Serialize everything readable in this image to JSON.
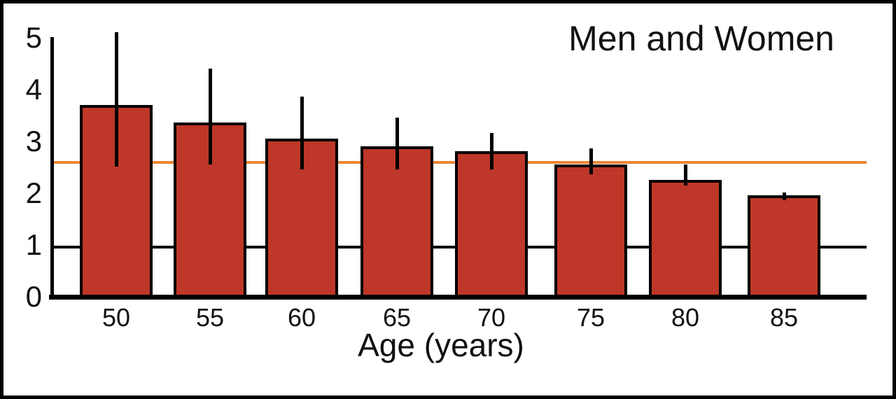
{
  "chart_data": {
    "type": "bar",
    "title": "Men and Women",
    "xlabel": "Age (years)",
    "ylabel": "",
    "categories": [
      "50",
      "55",
      "60",
      "65",
      "70",
      "75",
      "80",
      "85"
    ],
    "values": [
      3.75,
      3.4,
      3.1,
      2.95,
      2.85,
      2.6,
      2.3,
      2.0
    ],
    "error_low": [
      2.55,
      2.6,
      2.5,
      2.5,
      2.5,
      2.4,
      2.2,
      1.9
    ],
    "error_high": [
      5.15,
      4.45,
      3.9,
      3.5,
      3.2,
      2.9,
      2.6,
      2.05
    ],
    "y_ticks": [
      0,
      1,
      2,
      3,
      4,
      5
    ],
    "ylim": [
      0,
      5
    ],
    "reference_line": {
      "value": 2.63,
      "color": "#ee8632",
      "style": "solid"
    },
    "extra_gridline": {
      "value": 1,
      "color": "#000000"
    },
    "bar_color": "#be3728",
    "bar_outline_color": "#000000",
    "axis_color": "#000000",
    "text_color": "#111111",
    "legend": "none",
    "grid": "off"
  }
}
